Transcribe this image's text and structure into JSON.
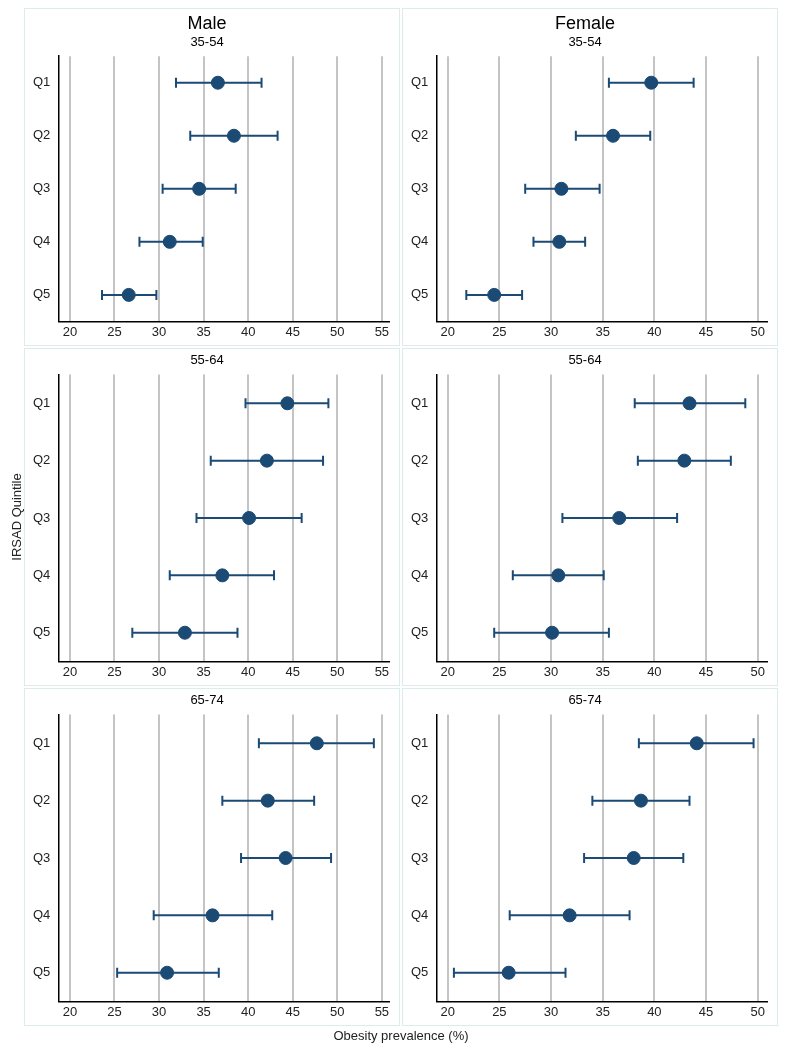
{
  "chart_data": [
    {
      "type": "scatter",
      "orientation": "horizontal",
      "title": "Male",
      "subtitle": "35-54",
      "categories": [
        "Q1",
        "Q2",
        "Q3",
        "Q4",
        "Q5"
      ],
      "values": [
        36.6,
        38.4,
        34.5,
        31.2,
        26.6
      ],
      "errors": [
        [
          31.9,
          41.5
        ],
        [
          33.5,
          43.3
        ],
        [
          30.4,
          38.6
        ],
        [
          27.8,
          34.9
        ],
        [
          23.6,
          29.7
        ]
      ],
      "color": "#1b4a74",
      "marker": "circle",
      "xlim": [
        18.7,
        55.8
      ],
      "xticks": [
        20,
        25,
        30,
        35,
        40,
        45,
        50,
        55
      ],
      "grid": "x"
    },
    {
      "type": "scatter",
      "orientation": "horizontal",
      "title": "Female",
      "subtitle": "35-54",
      "categories": [
        "Q1",
        "Q2",
        "Q3",
        "Q4",
        "Q5"
      ],
      "values": [
        39.7,
        36.0,
        31.0,
        30.8,
        24.5
      ],
      "errors": [
        [
          35.6,
          43.8
        ],
        [
          32.4,
          39.6
        ],
        [
          27.5,
          34.7
        ],
        [
          28.3,
          33.3
        ],
        [
          21.8,
          27.2
        ]
      ],
      "color": "#1b4a74",
      "marker": "circle",
      "xlim": [
        18.9,
        50.9
      ],
      "xticks": [
        20,
        25,
        30,
        35,
        40,
        45,
        50
      ],
      "grid": "x"
    },
    {
      "type": "scatter",
      "orientation": "horizontal",
      "title": "55-64",
      "ylabel": "IRSAD Quintile",
      "categories": [
        "Q1",
        "Q2",
        "Q3",
        "Q4",
        "Q5"
      ],
      "values": [
        44.4,
        42.1,
        40.1,
        37.1,
        32.9
      ],
      "errors": [
        [
          39.7,
          49.0
        ],
        [
          35.8,
          48.4
        ],
        [
          34.2,
          46.0
        ],
        [
          31.2,
          42.9
        ],
        [
          27.0,
          38.8
        ]
      ],
      "color": "#1b4a74",
      "marker": "circle",
      "xlim": [
        18.7,
        55.8
      ],
      "xticks": [
        20,
        25,
        30,
        35,
        40,
        45,
        50,
        55
      ],
      "grid": "x"
    },
    {
      "type": "scatter",
      "orientation": "horizontal",
      "title": "55-64",
      "categories": [
        "Q1",
        "Q2",
        "Q3",
        "Q4",
        "Q5"
      ],
      "values": [
        43.4,
        42.9,
        36.6,
        30.7,
        30.1
      ],
      "errors": [
        [
          38.1,
          48.8
        ],
        [
          38.4,
          47.4
        ],
        [
          31.1,
          42.2
        ],
        [
          26.3,
          35.1
        ],
        [
          24.5,
          35.6
        ]
      ],
      "color": "#1b4a74",
      "marker": "circle",
      "xlim": [
        18.9,
        50.9
      ],
      "xticks": [
        20,
        25,
        30,
        35,
        40,
        45,
        50
      ],
      "grid": "x"
    },
    {
      "type": "scatter",
      "orientation": "horizontal",
      "title": "65-74",
      "xlabel": "Obesity prevalence (%)",
      "categories": [
        "Q1",
        "Q2",
        "Q3",
        "Q4",
        "Q5"
      ],
      "values": [
        47.7,
        42.2,
        44.2,
        36.0,
        30.9
      ],
      "errors": [
        [
          41.2,
          54.1
        ],
        [
          37.1,
          47.4
        ],
        [
          39.2,
          49.3
        ],
        [
          29.4,
          42.7
        ],
        [
          25.3,
          36.7
        ]
      ],
      "color": "#1b4a74",
      "marker": "circle",
      "xlim": [
        18.7,
        55.8
      ],
      "xticks": [
        20,
        25,
        30,
        35,
        40,
        45,
        50,
        55
      ],
      "grid": "x"
    },
    {
      "type": "scatter",
      "orientation": "horizontal",
      "title": "65-74",
      "categories": [
        "Q1",
        "Q2",
        "Q3",
        "Q4",
        "Q5"
      ],
      "values": [
        44.1,
        38.7,
        38.0,
        31.8,
        25.9
      ],
      "errors": [
        [
          38.5,
          49.6
        ],
        [
          34.0,
          43.4
        ],
        [
          33.2,
          42.8
        ],
        [
          26.0,
          37.6
        ],
        [
          20.6,
          31.4
        ]
      ],
      "color": "#1b4a74",
      "marker": "circle",
      "xlim": [
        18.9,
        50.9
      ],
      "xticks": [
        20,
        25,
        30,
        35,
        40,
        45,
        50
      ],
      "grid": "x"
    }
  ]
}
